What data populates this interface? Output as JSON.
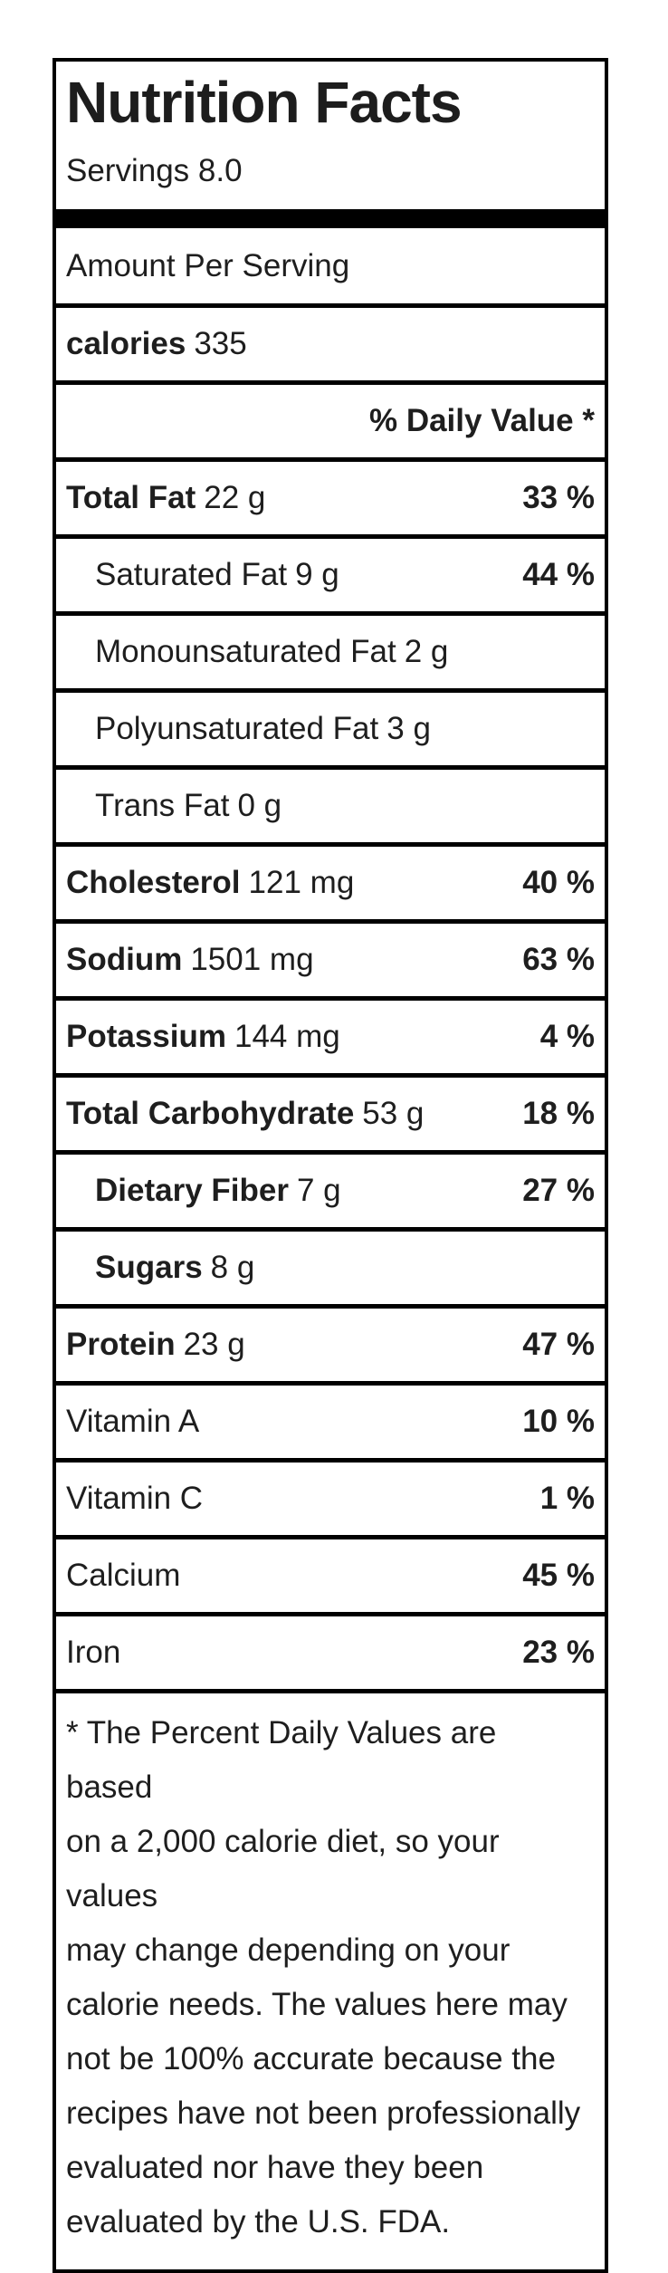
{
  "label": {
    "title": "Nutrition Facts",
    "servings": "Servings 8.0",
    "amount_per_serving": "Amount Per Serving",
    "calories_label": "calories",
    "calories_value": "335",
    "daily_value_header": "% Daily Value *"
  },
  "rows": [
    {
      "name": "Total Fat",
      "amount": "22 g",
      "dv": "33 %",
      "bold": true,
      "indent": false
    },
    {
      "name": "Saturated Fat",
      "amount": "9 g",
      "dv": "44 %",
      "bold": false,
      "indent": true
    },
    {
      "name": "Monounsaturated Fat",
      "amount": "2 g",
      "dv": "",
      "bold": false,
      "indent": true
    },
    {
      "name": "Polyunsaturated Fat",
      "amount": "3 g",
      "dv": "",
      "bold": false,
      "indent": true
    },
    {
      "name": "Trans Fat",
      "amount": "0 g",
      "dv": "",
      "bold": false,
      "indent": true
    },
    {
      "name": "Cholesterol",
      "amount": "121 mg",
      "dv": "40 %",
      "bold": true,
      "indent": false
    },
    {
      "name": "Sodium",
      "amount": "1501 mg",
      "dv": "63 %",
      "bold": true,
      "indent": false
    },
    {
      "name": "Potassium",
      "amount": "144 mg",
      "dv": "4 %",
      "bold": true,
      "indent": false
    },
    {
      "name": "Total Carbohydrate",
      "amount": "53 g",
      "dv": "18 %",
      "bold": true,
      "indent": false
    },
    {
      "name": "Dietary Fiber",
      "amount": "7 g",
      "dv": "27 %",
      "bold": true,
      "indent": true
    },
    {
      "name": "Sugars",
      "amount": "8 g",
      "dv": "",
      "bold": true,
      "indent": true
    },
    {
      "name": "Protein",
      "amount": "23 g",
      "dv": "47 %",
      "bold": true,
      "indent": false
    },
    {
      "name": "Vitamin A",
      "amount": "",
      "dv": "10 %",
      "bold": false,
      "indent": false
    },
    {
      "name": "Vitamin C",
      "amount": "",
      "dv": "1 %",
      "bold": false,
      "indent": false
    },
    {
      "name": "Calcium",
      "amount": "",
      "dv": "45 %",
      "bold": false,
      "indent": false
    },
    {
      "name": "Iron",
      "amount": "",
      "dv": "23 %",
      "bold": false,
      "indent": false
    }
  ],
  "footnote_lines": [
    "* The Percent Daily Values are based",
    "on a 2,000 calorie diet, so your values",
    "may change depending on your",
    "calorie needs. The values here may",
    "not be 100% accurate because the",
    "recipes have not been professionally",
    "evaluated nor have they been",
    "evaluated by the U.S. FDA."
  ],
  "colors": {
    "border": "#000000",
    "text": "#1e1e1e",
    "background": "#ffffff"
  }
}
